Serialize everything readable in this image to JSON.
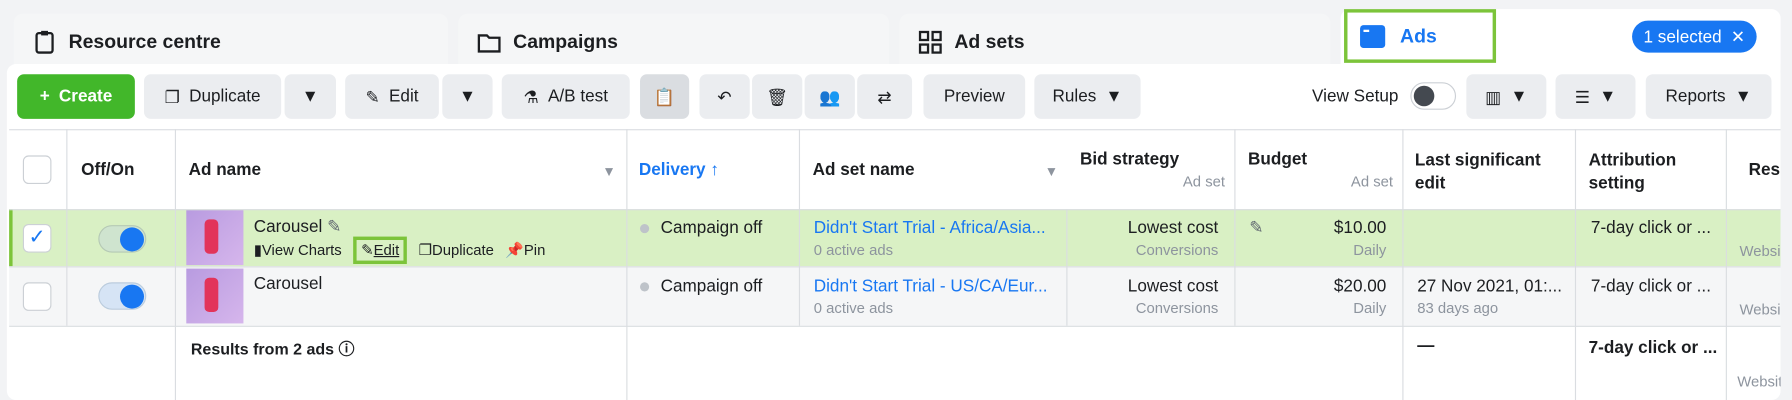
{
  "tabs": {
    "resource": "Resource centre",
    "campaigns": "Campaigns",
    "adsets": "Ad sets",
    "ads": "Ads",
    "selected": "1 selected"
  },
  "toolbar": {
    "create": "Create",
    "duplicate": "Duplicate",
    "edit": "Edit",
    "ab_test": "A/B test",
    "preview": "Preview",
    "rules": "Rules",
    "view_setup": "View Setup",
    "reports": "Reports"
  },
  "columns": {
    "offon": "Off/On",
    "ad_name": "Ad name",
    "delivery": "Delivery ↑",
    "adset_name": "Ad set name",
    "bid": "Bid strategy",
    "bid_sub": "Ad set",
    "budget": "Budget",
    "budget_sub": "Ad set",
    "last_edit": "Last significant edit",
    "attribution": "Attribution setting",
    "results": "Resu"
  },
  "rows": [
    {
      "ad_name": "Carousel",
      "actions": {
        "view_charts": "View Charts",
        "edit": "Edit",
        "duplicate": "Duplicate",
        "pin": "Pin"
      },
      "delivery": "Campaign off",
      "adset": "Didn't Start Trial - Africa/Asia...",
      "adset_sub": "0 active ads",
      "bid": "Lowest cost",
      "bid_sub": "Conversions",
      "budget": "$10.00",
      "budget_sub": "Daily",
      "last_edit": "",
      "last_edit_sub": "",
      "attribution": "7-day click or ...",
      "results_sub": "Websi",
      "selected": true,
      "on": true
    },
    {
      "ad_name": "Carousel",
      "delivery": "Campaign off",
      "adset": "Didn't Start Trial - US/CA/Eur...",
      "adset_sub": "0 active ads",
      "bid": "Lowest cost",
      "bid_sub": "Conversions",
      "budget": "$20.00",
      "budget_sub": "Daily",
      "last_edit": "27 Nov 2021, 01:...",
      "last_edit_sub": "83 days ago",
      "attribution": "7-day click or ...",
      "results_sub": "Websi",
      "selected": false,
      "on": true
    }
  ],
  "footer": {
    "label": "Results from 2 ads",
    "last_edit": "—",
    "attribution": "7-day click or ...",
    "results_sub": "Websit"
  },
  "colors": {
    "accent": "#1877f2",
    "create": "#42b72a",
    "selected_row": "#d9f0c4",
    "highlight": "#7cc43a"
  }
}
